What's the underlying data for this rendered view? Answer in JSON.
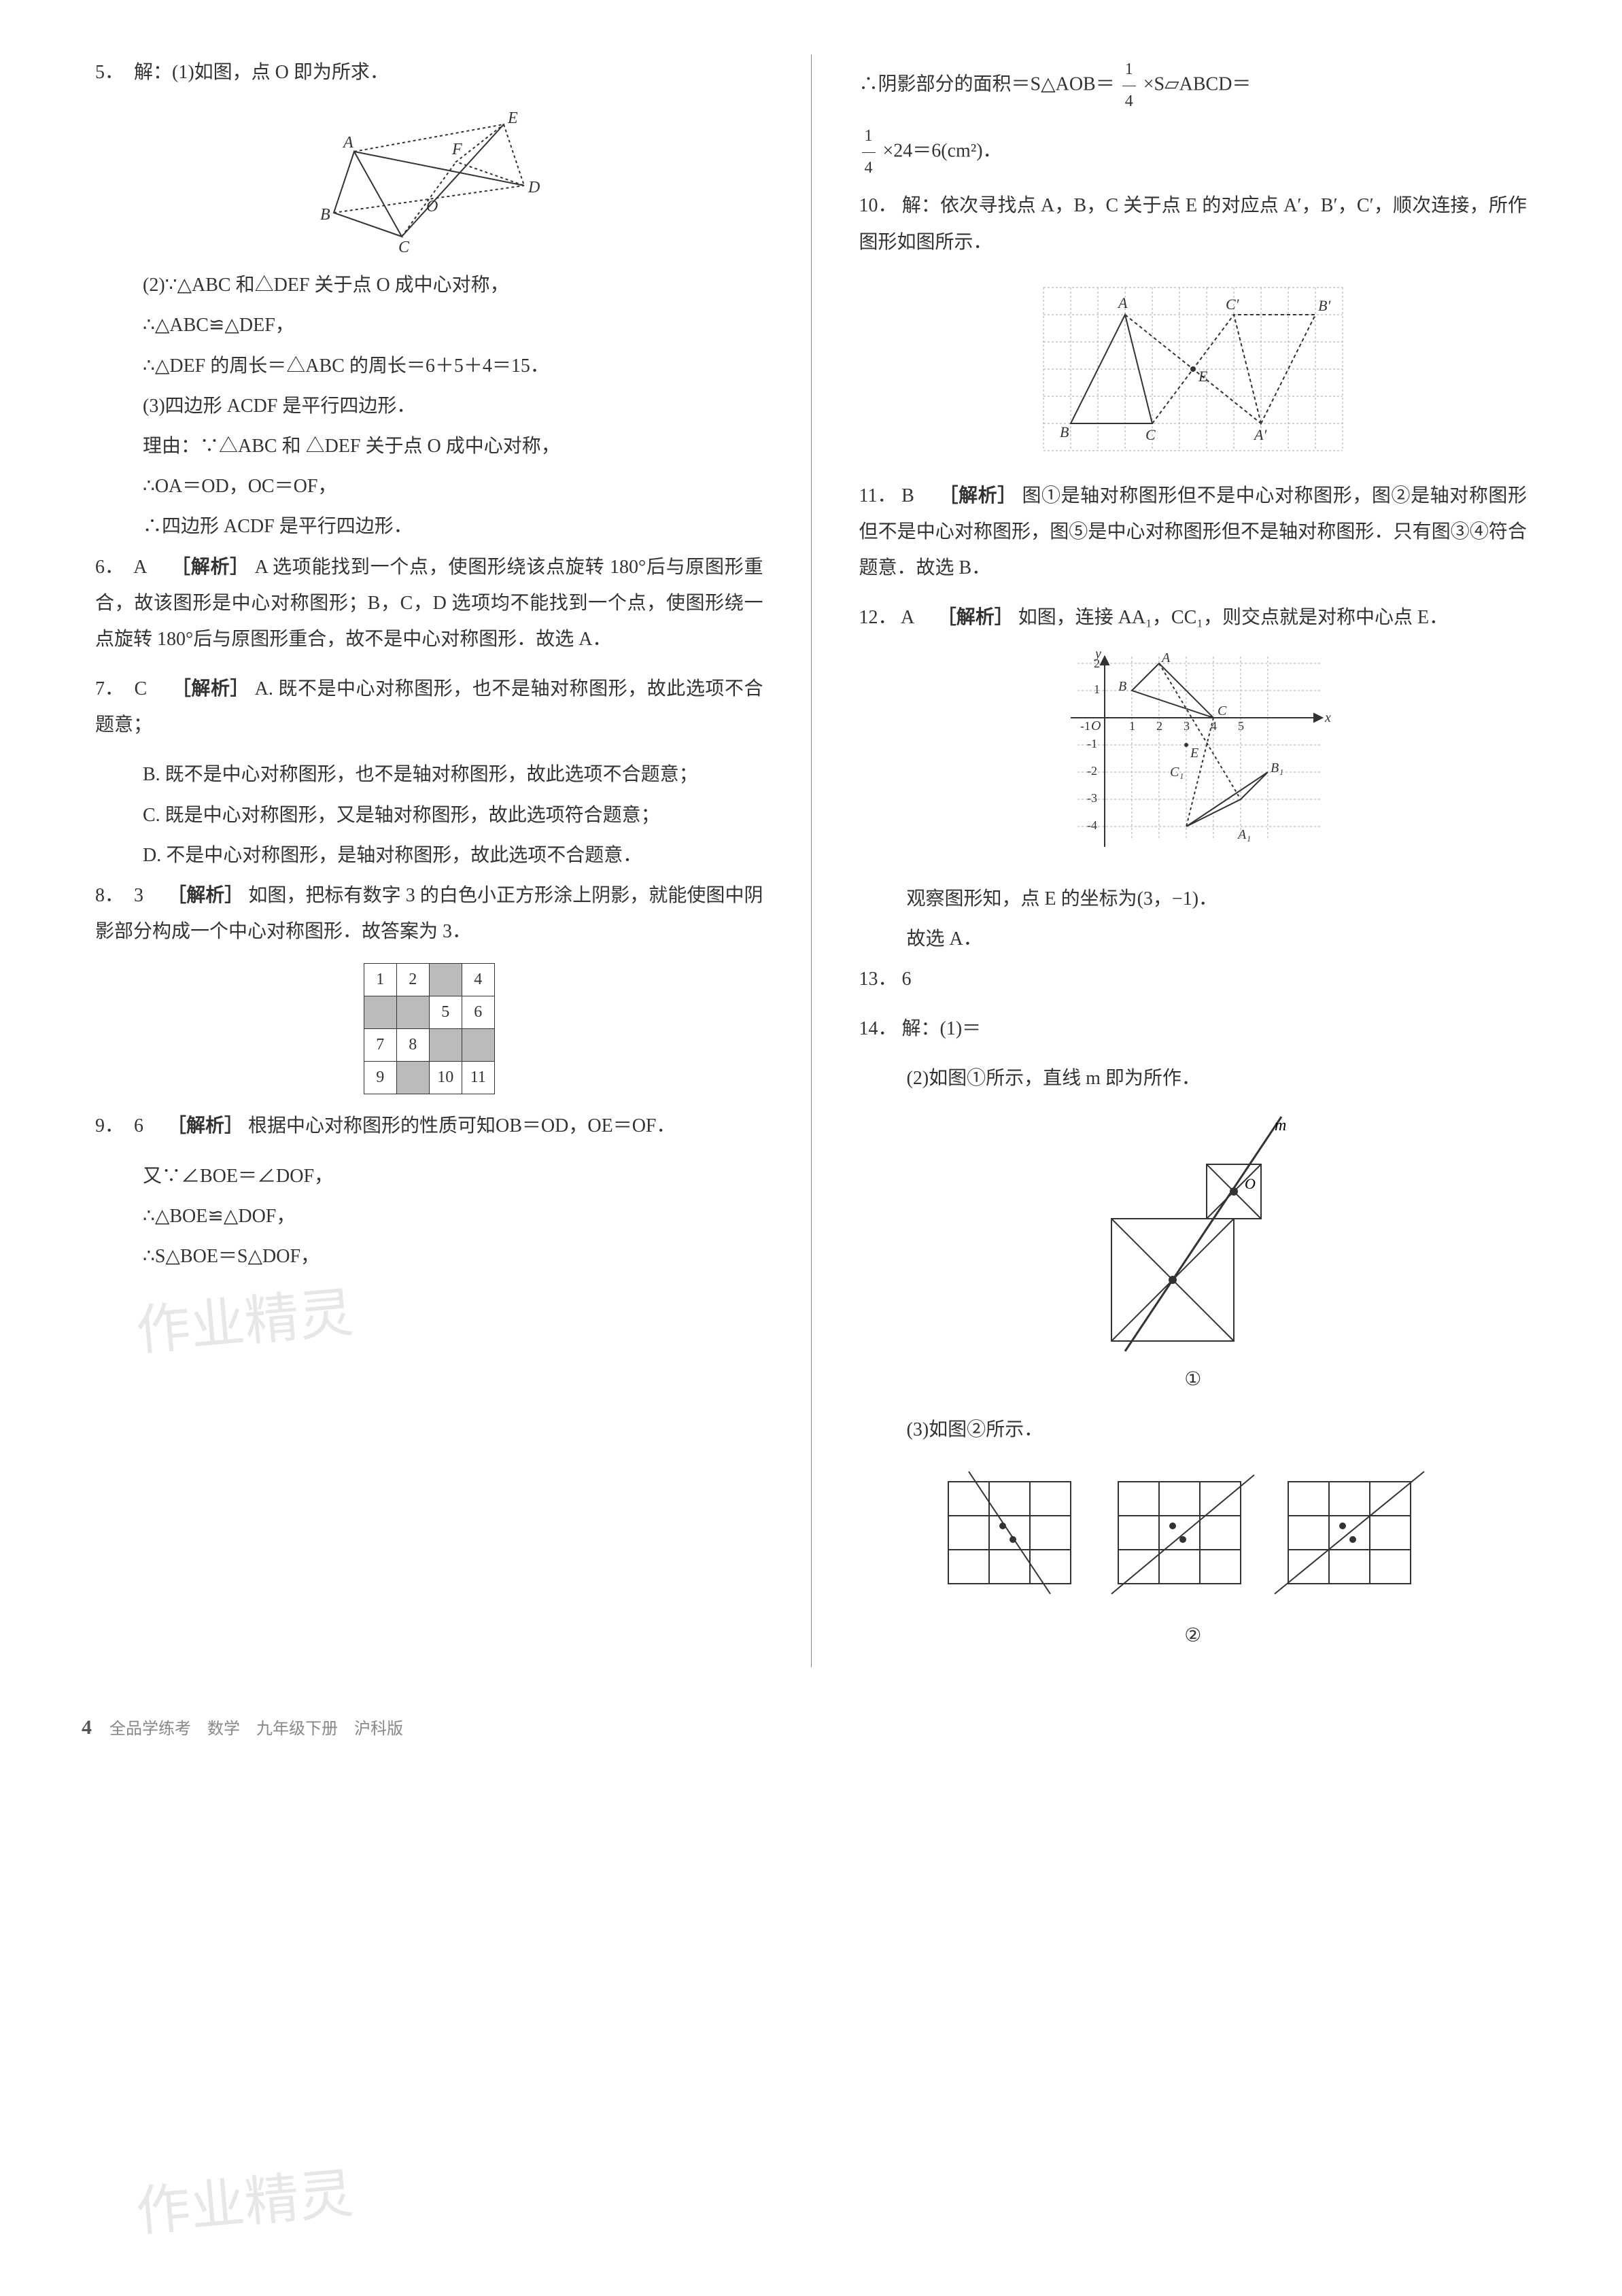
{
  "left": {
    "q5": {
      "num": "5．",
      "intro": "解：(1)如图，点 O 即为所求．",
      "fig_labels": {
        "A": "A",
        "B": "B",
        "C": "C",
        "D": "D",
        "E": "E",
        "F": "F",
        "O": "O"
      },
      "p2a": "(2)∵△ABC 和△DEF 关于点 O 成中心对称，",
      "p2b": "∴△ABC≌△DEF，",
      "p2c": "∴△DEF 的周长＝△ABC 的周长＝6＋5＋4＝15．",
      "p3a": "(3)四边形 ACDF 是平行四边形．",
      "p3b": "理由：∵△ABC 和 △DEF 关于点 O 成中心对称，",
      "p3c": "∴OA＝OD，OC＝OF，",
      "p3d": "∴四边形 ACDF 是平行四边形．"
    },
    "q6": {
      "num": "6．",
      "ans": "A",
      "label": "［解析］",
      "text": "A 选项能找到一个点，使图形绕该点旋转 180°后与原图形重合，故该图形是中心对称图形；B，C，D 选项均不能找到一个点，使图形绕一点旋转 180°后与原图形重合，故不是中心对称图形．故选 A．"
    },
    "q7": {
      "num": "7．",
      "ans": "C",
      "label": "［解析］",
      "pA": "A. 既不是中心对称图形，也不是轴对称图形，故此选项不合题意；",
      "pB": "B. 既不是中心对称图形，也不是轴对称图形，故此选项不合题意；",
      "pC": "C. 既是中心对称图形，又是轴对称图形，故此选项符合题意；",
      "pD": "D. 不是中心对称图形，是轴对称图形，故此选项不合题意．"
    },
    "q8": {
      "num": "8．",
      "ans": "3",
      "label": "［解析］",
      "text": "如图，把标有数字 3 的白色小正方形涂上阴影，就能使图中阴影部分构成一个中心对称图形．故答案为 3．",
      "grid": [
        [
          {
            "v": "1"
          },
          {
            "v": "2"
          },
          {
            "v": "",
            "s": true
          },
          {
            "v": "4"
          }
        ],
        [
          {
            "v": "",
            "s": true
          },
          {
            "v": "",
            "s": true
          },
          {
            "v": "5"
          },
          {
            "v": "6"
          }
        ],
        [
          {
            "v": "7"
          },
          {
            "v": "8"
          },
          {
            "v": "",
            "s": true
          },
          {
            "v": "",
            "s": true
          }
        ],
        [
          {
            "v": "9"
          },
          {
            "v": "",
            "s": true
          },
          {
            "v": "10"
          },
          {
            "v": "11"
          }
        ]
      ]
    },
    "q9": {
      "num": "9．",
      "ans": "6",
      "label": "［解析］",
      "text": "根据中心对称图形的性质可知OB＝OD，OE＝OF．",
      "p2": "又∵∠BOE＝∠DOF，",
      "p3": "∴△BOE≌△DOF，",
      "p4": "∴S△BOE＝S△DOF，"
    }
  },
  "right": {
    "q9cont": {
      "line1_pre": "∴阴影部分的面积＝S△AOB＝",
      "frac1_top": "1",
      "frac1_bot": "4",
      "line1_mid": "×S▱ABCD＝",
      "frac2_top": "1",
      "frac2_bot": "4",
      "line1_end": "×24＝6(cm²)．"
    },
    "q10": {
      "num": "10．",
      "text": "解：依次寻找点 A，B，C 关于点 E 的对应点 A′，B′，C′，顺次连接，所作图形如图所示．",
      "fig_labels": {
        "A": "A",
        "B": "B",
        "C": "C",
        "E": "E",
        "A1": "A′",
        "B1": "B′",
        "C1": "C′"
      }
    },
    "q11": {
      "num": "11．",
      "ans": "B",
      "label": "［解析］",
      "text": "图①是轴对称图形但不是中心对称图形，图②是轴对称图形但不是中心对称图形，图⑤是中心对称图形但不是轴对称图形．只有图③④符合题意．故选 B．"
    },
    "q12": {
      "num": "12．",
      "ans": "A",
      "label": "［解析］",
      "text": "如图，连接 AA₁，CC₁，则交点就是对称中心点 E．",
      "fig_labels": {
        "O": "O",
        "A": "A",
        "B": "B",
        "C": "C",
        "A1": "A₁",
        "B1": "B₁",
        "C1": "C₁",
        "E": "E",
        "x": "x",
        "y": "y"
      },
      "xticks": [
        "-1",
        "1",
        "2",
        "3",
        "4",
        "5"
      ],
      "yticks": [
        "-1",
        "-2",
        "-3",
        "-4",
        "1",
        "2"
      ],
      "obs": "观察图形知，点 E 的坐标为(3，−1)．",
      "concl": "故选 A．"
    },
    "q13": {
      "num": "13．",
      "ans": "6"
    },
    "q14": {
      "num": "14．",
      "intro": "解：(1)＝",
      "p2": "(2)如图①所示，直线 m 即为所作．",
      "label_m": "m",
      "label_O": "O",
      "cap1": "①",
      "p3": "(3)如图②所示．",
      "cap2": "②"
    }
  },
  "footer": {
    "page": "4",
    "text": "全品学练考　数学　九年级下册　沪科版"
  },
  "watermark": "作业精灵"
}
